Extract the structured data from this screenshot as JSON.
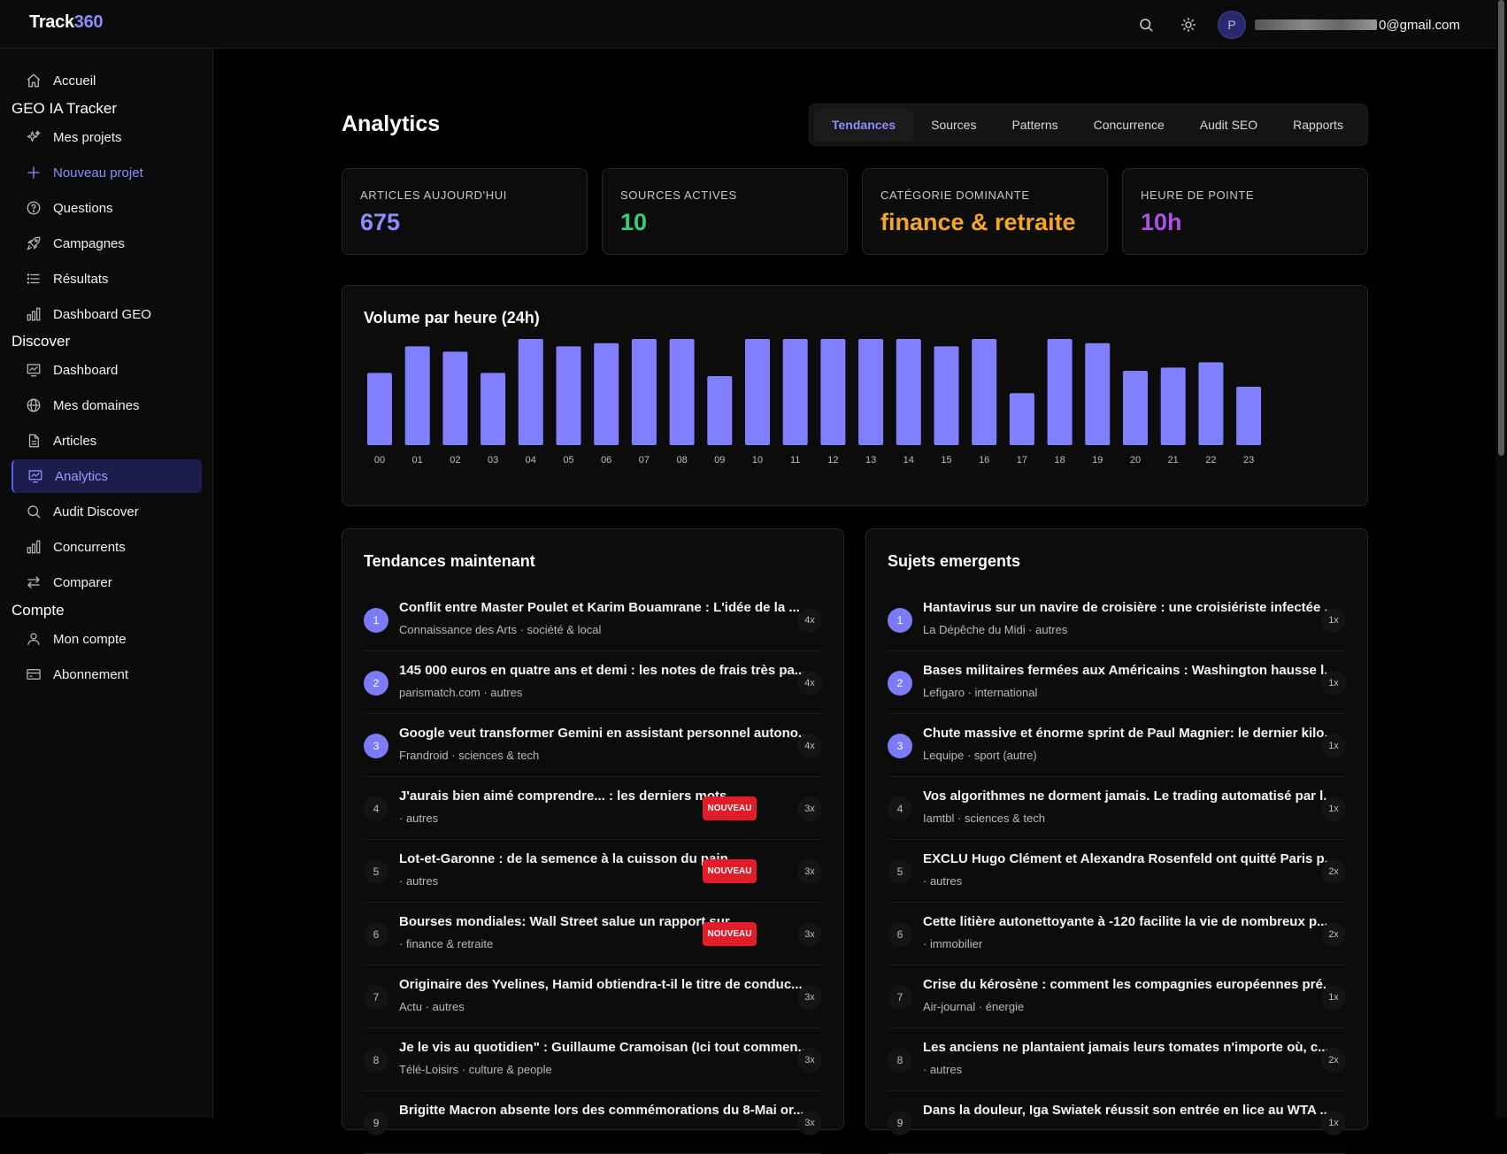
{
  "header": {
    "brand_main": "Track",
    "brand_accent": "360",
    "avatar_letter": "P",
    "email_visible": "0@gmail.com"
  },
  "sidebar": {
    "items": [
      {
        "label": "Accueil",
        "icon": "home-icon"
      },
      {
        "section": "GEO IA Tracker"
      },
      {
        "label": "Mes projets",
        "icon": "sparkles-icon"
      },
      {
        "label": "Nouveau projet",
        "icon": "plus-icon",
        "accent": true
      },
      {
        "label": "Questions",
        "icon": "question-circle-icon"
      },
      {
        "label": "Campagnes",
        "icon": "rocket-icon"
      },
      {
        "label": "Résultats",
        "icon": "list-icon"
      },
      {
        "label": "Dashboard GEO",
        "icon": "bar-chart-icon"
      },
      {
        "section": "Discover"
      },
      {
        "label": "Dashboard",
        "icon": "presentation-chart-icon"
      },
      {
        "label": "Mes domaines",
        "icon": "globe-icon"
      },
      {
        "label": "Articles",
        "icon": "document-icon"
      },
      {
        "label": "Analytics",
        "icon": "presentation-chart-icon",
        "active": true
      },
      {
        "label": "Audit Discover",
        "icon": "search-icon"
      },
      {
        "label": "Concurrents",
        "icon": "bar-chart-icon"
      },
      {
        "label": "Comparer",
        "icon": "swap-arrows-icon"
      },
      {
        "section": "Compte"
      },
      {
        "label": "Mon compte",
        "icon": "user-icon"
      },
      {
        "label": "Abonnement",
        "icon": "credit-card-icon"
      }
    ]
  },
  "main": {
    "title": "Analytics",
    "tabs": [
      "Tendances",
      "Sources",
      "Patterns",
      "Concurrence",
      "Audit SEO",
      "Rapports"
    ],
    "active_tab": "Tendances",
    "stats": [
      {
        "label": "ARTICLES AUJOURD'HUI",
        "value": "675",
        "color": "#8c8cff"
      },
      {
        "label": "SOURCES ACTIVES",
        "value": "10",
        "color": "#2fd180"
      },
      {
        "label": "CATÉGORIE DOMINANTE",
        "value": "finance & retraite",
        "color": "#f5a623"
      },
      {
        "label": "HEURE DE POINTE",
        "value": "10h",
        "color": "#b150e6"
      }
    ]
  },
  "chart_data": {
    "type": "bar",
    "title": "Volume par heure (24h)",
    "categories": [
      "00",
      "01",
      "02",
      "03",
      "04",
      "05",
      "06",
      "07",
      "08",
      "09",
      "10",
      "11",
      "12",
      "13",
      "14",
      "15",
      "16",
      "17",
      "18",
      "19",
      "20",
      "21",
      "22",
      "23"
    ],
    "values": [
      68,
      93,
      88,
      68,
      100,
      93,
      96,
      100,
      100,
      65,
      100,
      100,
      100,
      100,
      100,
      93,
      100,
      49,
      100,
      96,
      70,
      73,
      78,
      55
    ],
    "ylim": [
      0,
      100
    ],
    "color": "#8080ff"
  },
  "trends": {
    "title": "Tendances maintenant",
    "new_label": "NOUVEAU",
    "items": [
      {
        "rank": "1",
        "title": "Conflit entre Master Poulet et Karim Bouamrane : L'idée de la ...",
        "meta": "Connaissance des Arts · société & local",
        "count": "4x",
        "new": false
      },
      {
        "rank": "2",
        "title": "145 000 euros en quatre ans et demi : les notes de frais très pa...",
        "meta": "parismatch.com · autres",
        "count": "4x",
        "new": false
      },
      {
        "rank": "3",
        "title": "Google veut transformer Gemini en assistant personnel autono...",
        "meta": "Frandroid · sciences & tech",
        "count": "4x",
        "new": false
      },
      {
        "rank": "4",
        "title": "J'aurais bien aimé comprendre... : les derniers mots...",
        "meta": "· autres",
        "count": "3x",
        "new": true
      },
      {
        "rank": "5",
        "title": "Lot-et-Garonne : de la semence à la cuisson du pain...",
        "meta": "· autres",
        "count": "3x",
        "new": true
      },
      {
        "rank": "6",
        "title": "Bourses mondiales: Wall Street salue un rapport sur...",
        "meta": "· finance & retraite",
        "count": "3x",
        "new": true
      },
      {
        "rank": "7",
        "title": "Originaire des Yvelines, Hamid obtiendra-t-il le titre de conduc...",
        "meta": "Actu · autres",
        "count": "3x",
        "new": false
      },
      {
        "rank": "8",
        "title": "Je le vis au quotidien\" : Guillaume Cramoisan (Ici tout commen...",
        "meta": "Télé-Loisirs · culture & people",
        "count": "3x",
        "new": false
      },
      {
        "rank": "9",
        "title": "Brigitte Macron absente lors des commémorations du 8-Mai or...",
        "meta": "",
        "count": "3x",
        "new": false
      }
    ]
  },
  "emerging": {
    "title": "Sujets emergents",
    "items": [
      {
        "rank": "1",
        "title": "Hantavirus sur un navire de croisière : une croisiériste infectée ...",
        "meta": "La Dépêche du Midi · autres",
        "count": "1x"
      },
      {
        "rank": "2",
        "title": "Bases militaires fermées aux Américains : Washington hausse l...",
        "meta": "Lefigaro · international",
        "count": "1x"
      },
      {
        "rank": "3",
        "title": "Chute massive et énorme sprint de Paul Magnier: le dernier kilo...",
        "meta": "Lequipe · sport (autre)",
        "count": "1x"
      },
      {
        "rank": "4",
        "title": "Vos algorithmes ne dorment jamais. Le trading automatisé par l...",
        "meta": "Iamtbl · sciences & tech",
        "count": "1x"
      },
      {
        "rank": "5",
        "title": "EXCLU Hugo Clément et Alexandra Rosenfeld ont quitté Paris p...",
        "meta": "· autres",
        "count": "2x"
      },
      {
        "rank": "6",
        "title": "Cette litière autonettoyante à -120 facilite la vie de nombreux p...",
        "meta": "· immobilier",
        "count": "2x"
      },
      {
        "rank": "7",
        "title": "Crise du kérosène : comment les compagnies européennes pré...",
        "meta": "Air-journal · énergie",
        "count": "1x"
      },
      {
        "rank": "8",
        "title": "Les anciens ne plantaient jamais leurs tomates n'importe où, c...",
        "meta": "· autres",
        "count": "2x"
      },
      {
        "rank": "9",
        "title": "Dans la douleur, Iga Swiatek réussit son entrée en lice au WTA ...",
        "meta": "",
        "count": "1x"
      }
    ]
  }
}
